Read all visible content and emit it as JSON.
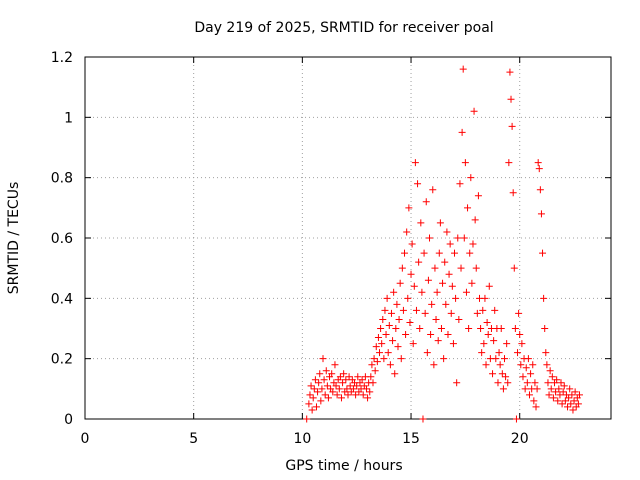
{
  "chart_data": {
    "type": "scatter",
    "title": "Day 219 of 2025, SRMTID for receiver poal",
    "xlabel": "GPS time / hours",
    "ylabel": "SRMTID / TECUs",
    "xlim": [
      0,
      24.2
    ],
    "ylim": [
      0,
      1.2
    ],
    "xticks": [
      0,
      5,
      10,
      15,
      20
    ],
    "yticks": [
      0,
      0.2,
      0.4,
      0.6,
      0.8,
      1,
      1.2
    ],
    "xtick_labels": [
      "0",
      "5",
      "10",
      "15",
      "20"
    ],
    "ytick_labels": [
      "0",
      "0.2",
      "0.4",
      "0.6",
      "0.8",
      "1",
      "1.2"
    ],
    "grid": true,
    "marker": "+",
    "color": "#ff0000",
    "points": [
      [
        10.2,
        0.0
      ],
      [
        10.3,
        0.05
      ],
      [
        10.35,
        0.08
      ],
      [
        10.4,
        0.11
      ],
      [
        10.45,
        0.03
      ],
      [
        10.5,
        0.07
      ],
      [
        10.55,
        0.1
      ],
      [
        10.6,
        0.13
      ],
      [
        10.65,
        0.04
      ],
      [
        10.7,
        0.09
      ],
      [
        10.75,
        0.12
      ],
      [
        10.8,
        0.15
      ],
      [
        10.85,
        0.06
      ],
      [
        10.9,
        0.1
      ],
      [
        10.95,
        0.2
      ],
      [
        11.0,
        0.13
      ],
      [
        11.05,
        0.08
      ],
      [
        11.1,
        0.16
      ],
      [
        11.15,
        0.11
      ],
      [
        11.2,
        0.07
      ],
      [
        11.25,
        0.14
      ],
      [
        11.3,
        0.1
      ],
      [
        11.35,
        0.15
      ],
      [
        11.4,
        0.09
      ],
      [
        11.45,
        0.12
      ],
      [
        11.5,
        0.18
      ],
      [
        11.55,
        0.11
      ],
      [
        11.6,
        0.08
      ],
      [
        11.65,
        0.13
      ],
      [
        11.7,
        0.1
      ],
      [
        11.75,
        0.14
      ],
      [
        11.8,
        0.07
      ],
      [
        11.85,
        0.12
      ],
      [
        11.9,
        0.15
      ],
      [
        11.95,
        0.09
      ],
      [
        12.0,
        0.13
      ],
      [
        12.05,
        0.1
      ],
      [
        12.1,
        0.08
      ],
      [
        12.15,
        0.14
      ],
      [
        12.2,
        0.11
      ],
      [
        12.25,
        0.09
      ],
      [
        12.3,
        0.13
      ],
      [
        12.35,
        0.1
      ],
      [
        12.4,
        0.12
      ],
      [
        12.45,
        0.08
      ],
      [
        12.5,
        0.11
      ],
      [
        12.55,
        0.14
      ],
      [
        12.6,
        0.09
      ],
      [
        12.65,
        0.12
      ],
      [
        12.7,
        0.1
      ],
      [
        12.75,
        0.13
      ],
      [
        12.8,
        0.08
      ],
      [
        12.85,
        0.11
      ],
      [
        12.9,
        0.14
      ],
      [
        12.95,
        0.1
      ],
      [
        13.0,
        0.07
      ],
      [
        13.05,
        0.12
      ],
      [
        13.1,
        0.09
      ],
      [
        13.15,
        0.14
      ],
      [
        13.2,
        0.18
      ],
      [
        13.25,
        0.12
      ],
      [
        13.3,
        0.2
      ],
      [
        13.35,
        0.16
      ],
      [
        13.4,
        0.24
      ],
      [
        13.45,
        0.19
      ],
      [
        13.5,
        0.27
      ],
      [
        13.55,
        0.22
      ],
      [
        13.6,
        0.3
      ],
      [
        13.65,
        0.25
      ],
      [
        13.7,
        0.33
      ],
      [
        13.75,
        0.2
      ],
      [
        13.8,
        0.36
      ],
      [
        13.85,
        0.28
      ],
      [
        13.9,
        0.4
      ],
      [
        13.95,
        0.22
      ],
      [
        14.0,
        0.31
      ],
      [
        14.05,
        0.18
      ],
      [
        14.1,
        0.35
      ],
      [
        14.15,
        0.26
      ],
      [
        14.2,
        0.42
      ],
      [
        14.25,
        0.15
      ],
      [
        14.3,
        0.3
      ],
      [
        14.35,
        0.38
      ],
      [
        14.4,
        0.24
      ],
      [
        14.45,
        0.33
      ],
      [
        14.5,
        0.45
      ],
      [
        14.55,
        0.2
      ],
      [
        14.6,
        0.5
      ],
      [
        14.65,
        0.36
      ],
      [
        14.7,
        0.55
      ],
      [
        14.75,
        0.28
      ],
      [
        14.8,
        0.62
      ],
      [
        14.85,
        0.4
      ],
      [
        14.9,
        0.7
      ],
      [
        14.95,
        0.32
      ],
      [
        15.0,
        0.48
      ],
      [
        15.05,
        0.58
      ],
      [
        15.1,
        0.25
      ],
      [
        15.15,
        0.44
      ],
      [
        15.2,
        0.85
      ],
      [
        15.25,
        0.36
      ],
      [
        15.3,
        0.78
      ],
      [
        15.35,
        0.52
      ],
      [
        15.4,
        0.3
      ],
      [
        15.45,
        0.65
      ],
      [
        15.5,
        0.42
      ],
      [
        15.55,
        0.0
      ],
      [
        15.6,
        0.55
      ],
      [
        15.65,
        0.35
      ],
      [
        15.7,
        0.72
      ],
      [
        15.75,
        0.22
      ],
      [
        15.8,
        0.46
      ],
      [
        15.85,
        0.6
      ],
      [
        15.9,
        0.28
      ],
      [
        15.95,
        0.38
      ],
      [
        16.0,
        0.76
      ],
      [
        16.05,
        0.18
      ],
      [
        16.1,
        0.5
      ],
      [
        16.15,
        0.33
      ],
      [
        16.2,
        0.42
      ],
      [
        16.25,
        0.26
      ],
      [
        16.3,
        0.55
      ],
      [
        16.35,
        0.65
      ],
      [
        16.4,
        0.3
      ],
      [
        16.45,
        0.45
      ],
      [
        16.5,
        0.2
      ],
      [
        16.55,
        0.52
      ],
      [
        16.6,
        0.38
      ],
      [
        16.65,
        0.62
      ],
      [
        16.7,
        0.28
      ],
      [
        16.75,
        0.48
      ],
      [
        16.8,
        0.58
      ],
      [
        16.85,
        0.35
      ],
      [
        16.9,
        0.44
      ],
      [
        16.95,
        0.25
      ],
      [
        17.0,
        0.55
      ],
      [
        17.05,
        0.4
      ],
      [
        17.1,
        0.12
      ],
      [
        17.15,
        0.6
      ],
      [
        17.2,
        0.33
      ],
      [
        17.25,
        0.78
      ],
      [
        17.3,
        0.5
      ],
      [
        17.35,
        0.95
      ],
      [
        17.4,
        1.16
      ],
      [
        17.45,
        0.6
      ],
      [
        17.5,
        0.85
      ],
      [
        17.55,
        0.42
      ],
      [
        17.6,
        0.7
      ],
      [
        17.65,
        0.3
      ],
      [
        17.7,
        0.55
      ],
      [
        17.75,
        0.8
      ],
      [
        17.8,
        0.45
      ],
      [
        17.85,
        0.58
      ],
      [
        17.9,
        1.02
      ],
      [
        17.95,
        0.66
      ],
      [
        18.0,
        0.5
      ],
      [
        18.05,
        0.35
      ],
      [
        18.1,
        0.74
      ],
      [
        18.15,
        0.4
      ],
      [
        18.2,
        0.3
      ],
      [
        18.25,
        0.22
      ],
      [
        18.3,
        0.36
      ],
      [
        18.35,
        0.25
      ],
      [
        18.4,
        0.4
      ],
      [
        18.45,
        0.18
      ],
      [
        18.5,
        0.32
      ],
      [
        18.55,
        0.28
      ],
      [
        18.6,
        0.44
      ],
      [
        18.65,
        0.2
      ],
      [
        18.7,
        0.3
      ],
      [
        18.75,
        0.15
      ],
      [
        18.8,
        0.26
      ],
      [
        18.85,
        0.36
      ],
      [
        18.9,
        0.2
      ],
      [
        18.95,
        0.3
      ],
      [
        19.0,
        0.12
      ],
      [
        19.05,
        0.22
      ],
      [
        19.1,
        0.18
      ],
      [
        19.15,
        0.3
      ],
      [
        19.2,
        0.15
      ],
      [
        19.25,
        0.1
      ],
      [
        19.3,
        0.2
      ],
      [
        19.35,
        0.14
      ],
      [
        19.4,
        0.25
      ],
      [
        19.45,
        0.12
      ],
      [
        19.5,
        0.85
      ],
      [
        19.55,
        1.15
      ],
      [
        19.6,
        1.06
      ],
      [
        19.65,
        0.97
      ],
      [
        19.7,
        0.75
      ],
      [
        19.75,
        0.5
      ],
      [
        19.8,
        0.3
      ],
      [
        19.85,
        0.0
      ],
      [
        19.9,
        0.22
      ],
      [
        19.95,
        0.35
      ],
      [
        20.0,
        0.28
      ],
      [
        20.05,
        0.18
      ],
      [
        20.1,
        0.25
      ],
      [
        20.15,
        0.14
      ],
      [
        20.2,
        0.2
      ],
      [
        20.25,
        0.1
      ],
      [
        20.3,
        0.17
      ],
      [
        20.35,
        0.12
      ],
      [
        20.4,
        0.2
      ],
      [
        20.45,
        0.08
      ],
      [
        20.5,
        0.15
      ],
      [
        20.55,
        0.1
      ],
      [
        20.6,
        0.18
      ],
      [
        20.65,
        0.06
      ],
      [
        20.7,
        0.12
      ],
      [
        20.75,
        0.04
      ],
      [
        20.8,
        0.1
      ],
      [
        20.85,
        0.85
      ],
      [
        20.9,
        0.83
      ],
      [
        20.95,
        0.76
      ],
      [
        21.0,
        0.68
      ],
      [
        21.05,
        0.55
      ],
      [
        21.1,
        0.4
      ],
      [
        21.15,
        0.3
      ],
      [
        21.2,
        0.22
      ],
      [
        21.25,
        0.18
      ],
      [
        21.3,
        0.12
      ],
      [
        21.35,
        0.08
      ],
      [
        21.4,
        0.16
      ],
      [
        21.45,
        0.1
      ],
      [
        21.5,
        0.14
      ],
      [
        21.55,
        0.07
      ],
      [
        21.6,
        0.12
      ],
      [
        21.65,
        0.09
      ],
      [
        21.7,
        0.13
      ],
      [
        21.75,
        0.06
      ],
      [
        21.8,
        0.1
      ],
      [
        21.85,
        0.08
      ],
      [
        21.9,
        0.12
      ],
      [
        21.95,
        0.05
      ],
      [
        22.0,
        0.09
      ],
      [
        22.05,
        0.11
      ],
      [
        22.1,
        0.06
      ],
      [
        22.15,
        0.08
      ],
      [
        22.2,
        0.04
      ],
      [
        22.25,
        0.07
      ],
      [
        22.3,
        0.1
      ],
      [
        22.35,
        0.05
      ],
      [
        22.4,
        0.08
      ],
      [
        22.45,
        0.03
      ],
      [
        22.5,
        0.06
      ],
      [
        22.55,
        0.09
      ],
      [
        22.6,
        0.04
      ],
      [
        22.65,
        0.07
      ],
      [
        22.7,
        0.05
      ],
      [
        22.75,
        0.08
      ]
    ]
  }
}
